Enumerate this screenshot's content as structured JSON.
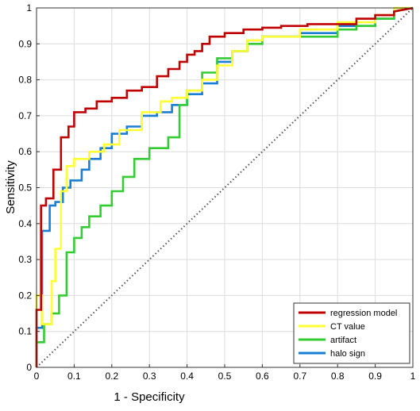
{
  "chart_data": {
    "type": "line",
    "title": "",
    "xlabel": "1 - Specificity",
    "ylabel": "Sensitivity",
    "xlim": [
      0,
      1
    ],
    "ylim": [
      0,
      1
    ],
    "xticks": [
      "0",
      "0.1",
      "0.2",
      "0.3",
      "0.4",
      "0.5",
      "0.6",
      "0.7",
      "0.8",
      "0.9",
      "1"
    ],
    "yticks": [
      "0",
      "0.1",
      "0.2",
      "0.3",
      "0.4",
      "0.5",
      "0.6",
      "0.7",
      "0.8",
      "0.9",
      "1"
    ],
    "grid": true,
    "legend": "bottom-right",
    "reference_line": {
      "x": [
        0,
        1
      ],
      "y": [
        0,
        1
      ],
      "style": "dotted",
      "color": "#555555"
    },
    "series": [
      {
        "name": "regression model",
        "color": "#c00000",
        "x": [
          0,
          0,
          0.012,
          0.012,
          0.025,
          0.025,
          0.045,
          0.045,
          0.065,
          0.065,
          0.085,
          0.085,
          0.1,
          0.1,
          0.13,
          0.13,
          0.16,
          0.16,
          0.2,
          0.2,
          0.24,
          0.24,
          0.28,
          0.28,
          0.32,
          0.32,
          0.35,
          0.35,
          0.38,
          0.38,
          0.4,
          0.4,
          0.42,
          0.42,
          0.44,
          0.44,
          0.46,
          0.46,
          0.5,
          0.5,
          0.55,
          0.55,
          0.6,
          0.6,
          0.65,
          0.65,
          0.72,
          0.72,
          0.85,
          0.85,
          0.9,
          0.9,
          0.95,
          0.95,
          1
        ],
        "y": [
          0,
          0.16,
          0.16,
          0.45,
          0.45,
          0.47,
          0.47,
          0.55,
          0.55,
          0.64,
          0.64,
          0.67,
          0.67,
          0.71,
          0.71,
          0.72,
          0.72,
          0.74,
          0.74,
          0.75,
          0.75,
          0.77,
          0.77,
          0.78,
          0.78,
          0.81,
          0.81,
          0.83,
          0.83,
          0.85,
          0.85,
          0.87,
          0.87,
          0.88,
          0.88,
          0.9,
          0.9,
          0.92,
          0.92,
          0.93,
          0.93,
          0.94,
          0.94,
          0.945,
          0.945,
          0.95,
          0.95,
          0.955,
          0.955,
          0.97,
          0.97,
          0.98,
          0.98,
          0.99,
          1
        ]
      },
      {
        "name": "CT value",
        "color": "#ffff33",
        "x": [
          0,
          0,
          0.015,
          0.015,
          0.04,
          0.04,
          0.05,
          0.05,
          0.065,
          0.065,
          0.08,
          0.08,
          0.1,
          0.1,
          0.14,
          0.14,
          0.18,
          0.18,
          0.22,
          0.22,
          0.28,
          0.28,
          0.33,
          0.33,
          0.36,
          0.36,
          0.4,
          0.4,
          0.44,
          0.44,
          0.48,
          0.48,
          0.52,
          0.52,
          0.56,
          0.56,
          0.6,
          0.6,
          0.7,
          0.7,
          0.8,
          0.8,
          0.9,
          0.9,
          0.95,
          0.95,
          1
        ],
        "y": [
          0,
          0.2,
          0.2,
          0.12,
          0.12,
          0.24,
          0.24,
          0.33,
          0.33,
          0.49,
          0.49,
          0.56,
          0.56,
          0.58,
          0.58,
          0.6,
          0.6,
          0.62,
          0.62,
          0.66,
          0.66,
          0.71,
          0.71,
          0.74,
          0.74,
          0.75,
          0.75,
          0.77,
          0.77,
          0.8,
          0.8,
          0.84,
          0.84,
          0.88,
          0.88,
          0.91,
          0.91,
          0.92,
          0.92,
          0.94,
          0.94,
          0.96,
          0.96,
          0.98,
          0.98,
          1,
          1
        ]
      },
      {
        "name": "artifact",
        "color": "#33cc33",
        "x": [
          0,
          0,
          0.02,
          0.02,
          0.04,
          0.04,
          0.06,
          0.06,
          0.08,
          0.08,
          0.1,
          0.1,
          0.12,
          0.12,
          0.14,
          0.14,
          0.17,
          0.17,
          0.2,
          0.2,
          0.23,
          0.23,
          0.26,
          0.26,
          0.3,
          0.3,
          0.35,
          0.35,
          0.38,
          0.38,
          0.4,
          0.4,
          0.44,
          0.44,
          0.48,
          0.48,
          0.52,
          0.52,
          0.56,
          0.56,
          0.6,
          0.6,
          0.7,
          0.7,
          0.8,
          0.8,
          0.85,
          0.85,
          0.9,
          0.9,
          0.95,
          0.95,
          1
        ],
        "y": [
          0,
          0.07,
          0.07,
          0.12,
          0.12,
          0.15,
          0.15,
          0.2,
          0.2,
          0.32,
          0.32,
          0.36,
          0.36,
          0.39,
          0.39,
          0.42,
          0.42,
          0.45,
          0.45,
          0.49,
          0.49,
          0.53,
          0.53,
          0.58,
          0.58,
          0.61,
          0.61,
          0.64,
          0.64,
          0.73,
          0.73,
          0.77,
          0.77,
          0.82,
          0.82,
          0.86,
          0.86,
          0.88,
          0.88,
          0.9,
          0.9,
          0.92,
          0.92,
          0.92,
          0.92,
          0.94,
          0.94,
          0.95,
          0.95,
          0.97,
          0.97,
          0.99,
          1
        ]
      },
      {
        "name": "halo sign",
        "color": "#1a7fd4",
        "x": [
          0,
          0,
          0.015,
          0.015,
          0.035,
          0.035,
          0.05,
          0.05,
          0.07,
          0.07,
          0.09,
          0.09,
          0.12,
          0.12,
          0.14,
          0.14,
          0.17,
          0.17,
          0.2,
          0.2,
          0.24,
          0.24,
          0.28,
          0.28,
          0.32,
          0.32,
          0.36,
          0.36,
          0.4,
          0.4,
          0.44,
          0.44,
          0.48,
          0.48,
          0.52,
          0.52,
          0.56,
          0.56,
          0.6,
          0.6,
          0.7,
          0.7,
          0.8,
          0.8,
          0.9,
          0.9,
          0.95,
          0.95,
          1
        ],
        "y": [
          0,
          0.11,
          0.11,
          0.38,
          0.38,
          0.45,
          0.45,
          0.46,
          0.46,
          0.5,
          0.5,
          0.52,
          0.52,
          0.55,
          0.55,
          0.58,
          0.58,
          0.61,
          0.61,
          0.65,
          0.65,
          0.67,
          0.67,
          0.7,
          0.7,
          0.71,
          0.71,
          0.73,
          0.73,
          0.76,
          0.76,
          0.79,
          0.79,
          0.85,
          0.85,
          0.88,
          0.88,
          0.91,
          0.91,
          0.92,
          0.92,
          0.93,
          0.93,
          0.95,
          0.95,
          0.97,
          0.97,
          0.99,
          1
        ]
      }
    ]
  }
}
